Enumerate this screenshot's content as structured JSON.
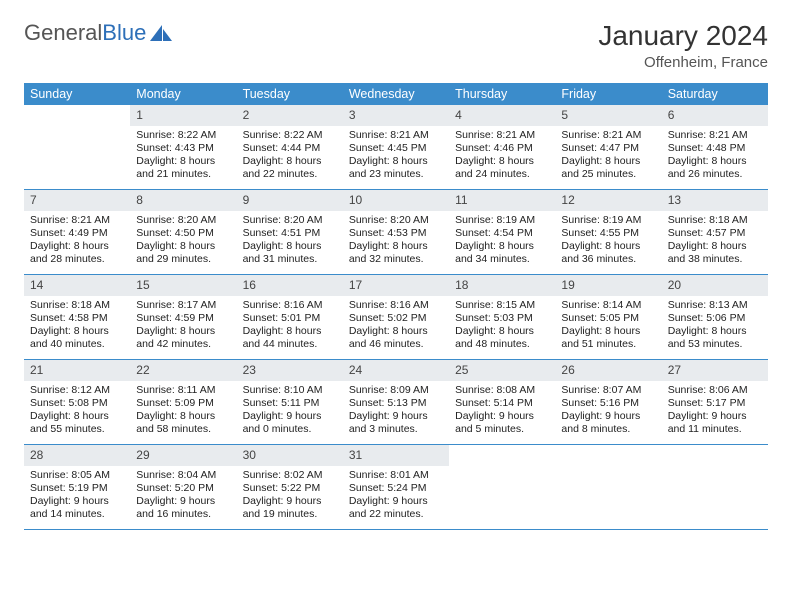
{
  "logo": {
    "word1": "General",
    "word2": "Blue"
  },
  "title": {
    "month": "January 2024",
    "location": "Offenheim, France"
  },
  "style": {
    "header_bg": "#3b8ccb",
    "row_border": "#3b8ccb",
    "daynum_bg": "#e8ebee",
    "logo_color1": "#555555",
    "logo_color2": "#2d6fb8"
  },
  "dayNames": [
    "Sunday",
    "Monday",
    "Tuesday",
    "Wednesday",
    "Thursday",
    "Friday",
    "Saturday"
  ],
  "weeks": [
    [
      {
        "n": "",
        "l1": "",
        "l2": "",
        "l3": "",
        "l4": ""
      },
      {
        "n": "1",
        "l1": "Sunrise: 8:22 AM",
        "l2": "Sunset: 4:43 PM",
        "l3": "Daylight: 8 hours",
        "l4": "and 21 minutes."
      },
      {
        "n": "2",
        "l1": "Sunrise: 8:22 AM",
        "l2": "Sunset: 4:44 PM",
        "l3": "Daylight: 8 hours",
        "l4": "and 22 minutes."
      },
      {
        "n": "3",
        "l1": "Sunrise: 8:21 AM",
        "l2": "Sunset: 4:45 PM",
        "l3": "Daylight: 8 hours",
        "l4": "and 23 minutes."
      },
      {
        "n": "4",
        "l1": "Sunrise: 8:21 AM",
        "l2": "Sunset: 4:46 PM",
        "l3": "Daylight: 8 hours",
        "l4": "and 24 minutes."
      },
      {
        "n": "5",
        "l1": "Sunrise: 8:21 AM",
        "l2": "Sunset: 4:47 PM",
        "l3": "Daylight: 8 hours",
        "l4": "and 25 minutes."
      },
      {
        "n": "6",
        "l1": "Sunrise: 8:21 AM",
        "l2": "Sunset: 4:48 PM",
        "l3": "Daylight: 8 hours",
        "l4": "and 26 minutes."
      }
    ],
    [
      {
        "n": "7",
        "l1": "Sunrise: 8:21 AM",
        "l2": "Sunset: 4:49 PM",
        "l3": "Daylight: 8 hours",
        "l4": "and 28 minutes."
      },
      {
        "n": "8",
        "l1": "Sunrise: 8:20 AM",
        "l2": "Sunset: 4:50 PM",
        "l3": "Daylight: 8 hours",
        "l4": "and 29 minutes."
      },
      {
        "n": "9",
        "l1": "Sunrise: 8:20 AM",
        "l2": "Sunset: 4:51 PM",
        "l3": "Daylight: 8 hours",
        "l4": "and 31 minutes."
      },
      {
        "n": "10",
        "l1": "Sunrise: 8:20 AM",
        "l2": "Sunset: 4:53 PM",
        "l3": "Daylight: 8 hours",
        "l4": "and 32 minutes."
      },
      {
        "n": "11",
        "l1": "Sunrise: 8:19 AM",
        "l2": "Sunset: 4:54 PM",
        "l3": "Daylight: 8 hours",
        "l4": "and 34 minutes."
      },
      {
        "n": "12",
        "l1": "Sunrise: 8:19 AM",
        "l2": "Sunset: 4:55 PM",
        "l3": "Daylight: 8 hours",
        "l4": "and 36 minutes."
      },
      {
        "n": "13",
        "l1": "Sunrise: 8:18 AM",
        "l2": "Sunset: 4:57 PM",
        "l3": "Daylight: 8 hours",
        "l4": "and 38 minutes."
      }
    ],
    [
      {
        "n": "14",
        "l1": "Sunrise: 8:18 AM",
        "l2": "Sunset: 4:58 PM",
        "l3": "Daylight: 8 hours",
        "l4": "and 40 minutes."
      },
      {
        "n": "15",
        "l1": "Sunrise: 8:17 AM",
        "l2": "Sunset: 4:59 PM",
        "l3": "Daylight: 8 hours",
        "l4": "and 42 minutes."
      },
      {
        "n": "16",
        "l1": "Sunrise: 8:16 AM",
        "l2": "Sunset: 5:01 PM",
        "l3": "Daylight: 8 hours",
        "l4": "and 44 minutes."
      },
      {
        "n": "17",
        "l1": "Sunrise: 8:16 AM",
        "l2": "Sunset: 5:02 PM",
        "l3": "Daylight: 8 hours",
        "l4": "and 46 minutes."
      },
      {
        "n": "18",
        "l1": "Sunrise: 8:15 AM",
        "l2": "Sunset: 5:03 PM",
        "l3": "Daylight: 8 hours",
        "l4": "and 48 minutes."
      },
      {
        "n": "19",
        "l1": "Sunrise: 8:14 AM",
        "l2": "Sunset: 5:05 PM",
        "l3": "Daylight: 8 hours",
        "l4": "and 51 minutes."
      },
      {
        "n": "20",
        "l1": "Sunrise: 8:13 AM",
        "l2": "Sunset: 5:06 PM",
        "l3": "Daylight: 8 hours",
        "l4": "and 53 minutes."
      }
    ],
    [
      {
        "n": "21",
        "l1": "Sunrise: 8:12 AM",
        "l2": "Sunset: 5:08 PM",
        "l3": "Daylight: 8 hours",
        "l4": "and 55 minutes."
      },
      {
        "n": "22",
        "l1": "Sunrise: 8:11 AM",
        "l2": "Sunset: 5:09 PM",
        "l3": "Daylight: 8 hours",
        "l4": "and 58 minutes."
      },
      {
        "n": "23",
        "l1": "Sunrise: 8:10 AM",
        "l2": "Sunset: 5:11 PM",
        "l3": "Daylight: 9 hours",
        "l4": "and 0 minutes."
      },
      {
        "n": "24",
        "l1": "Sunrise: 8:09 AM",
        "l2": "Sunset: 5:13 PM",
        "l3": "Daylight: 9 hours",
        "l4": "and 3 minutes."
      },
      {
        "n": "25",
        "l1": "Sunrise: 8:08 AM",
        "l2": "Sunset: 5:14 PM",
        "l3": "Daylight: 9 hours",
        "l4": "and 5 minutes."
      },
      {
        "n": "26",
        "l1": "Sunrise: 8:07 AM",
        "l2": "Sunset: 5:16 PM",
        "l3": "Daylight: 9 hours",
        "l4": "and 8 minutes."
      },
      {
        "n": "27",
        "l1": "Sunrise: 8:06 AM",
        "l2": "Sunset: 5:17 PM",
        "l3": "Daylight: 9 hours",
        "l4": "and 11 minutes."
      }
    ],
    [
      {
        "n": "28",
        "l1": "Sunrise: 8:05 AM",
        "l2": "Sunset: 5:19 PM",
        "l3": "Daylight: 9 hours",
        "l4": "and 14 minutes."
      },
      {
        "n": "29",
        "l1": "Sunrise: 8:04 AM",
        "l2": "Sunset: 5:20 PM",
        "l3": "Daylight: 9 hours",
        "l4": "and 16 minutes."
      },
      {
        "n": "30",
        "l1": "Sunrise: 8:02 AM",
        "l2": "Sunset: 5:22 PM",
        "l3": "Daylight: 9 hours",
        "l4": "and 19 minutes."
      },
      {
        "n": "31",
        "l1": "Sunrise: 8:01 AM",
        "l2": "Sunset: 5:24 PM",
        "l3": "Daylight: 9 hours",
        "l4": "and 22 minutes."
      },
      {
        "n": "",
        "l1": "",
        "l2": "",
        "l3": "",
        "l4": ""
      },
      {
        "n": "",
        "l1": "",
        "l2": "",
        "l3": "",
        "l4": ""
      },
      {
        "n": "",
        "l1": "",
        "l2": "",
        "l3": "",
        "l4": ""
      }
    ]
  ]
}
